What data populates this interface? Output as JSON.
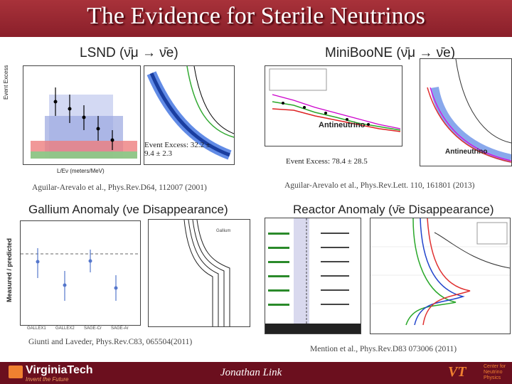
{
  "title": "The Evidence for Sterile Neutrinos",
  "panels": {
    "lsnd": {
      "heading": "LSND (ν̄μ → ν̄e)",
      "excess": "Event Excess: 32.2 ± 9.4 ± 2.3",
      "caption": "Aguilar-Arevalo et al., Phys.Rev.D64, 112007 (2001)",
      "ylabel": "Event Excess",
      "xlabel": "L/Eν (meters/MeV)"
    },
    "miniboone": {
      "heading": "MiniBooNE (ν̄μ → ν̄e)",
      "excess": "Event Excess: 78.4 ± 28.5",
      "caption": "Aguilar-Arevalo et al., Phys.Rev.Lett. 110, 161801 (2013)",
      "plot_label": "Antineutrino",
      "contour_label": "Antineutrino"
    },
    "gallium": {
      "heading": "Gallium Anomaly (νe Disappearance)",
      "caption": "Giunti and Laveder, Phys.Rev.C83, 065504(2011)",
      "ylabel": "Measured / predicted",
      "xlabels": [
        "GALLEX1",
        "GALLEX2",
        "SAGE-Cr",
        "SAGE-Ar"
      ],
      "legend_title": "Gallium"
    },
    "reactor": {
      "heading": "Reactor Anomaly (ν̄e Disappearance)",
      "caption": "Mention et al., Phys.Rev.D83 073006 (2011)"
    }
  },
  "footer": {
    "logo_text": "VirginiaTech",
    "tagline": "Invent the Future",
    "author": "Jonathan Link",
    "vt_mark": "VT",
    "center_name": "Center for Neutrino Physics"
  }
}
